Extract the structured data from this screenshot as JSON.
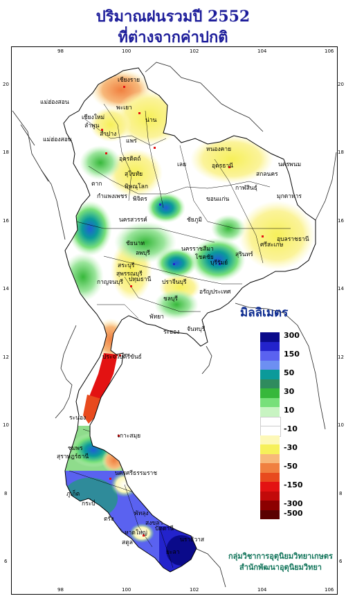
{
  "title": {
    "line1": "ปริมาณฝนรวมปี  2552",
    "line2": "ที่ต่างจากค่าปกติ"
  },
  "axes": {
    "longitude_ticks": [
      "98",
      "100",
      "102",
      "104",
      "106"
    ],
    "latitude_ticks": [
      "20",
      "18",
      "16",
      "14",
      "12",
      "10",
      "8",
      "6"
    ]
  },
  "legend": {
    "unit_title": "มิลลิเมตร",
    "entries": [
      {
        "color": "#0a0a8a",
        "label": "300"
      },
      {
        "color": "#2323cc",
        "label": ""
      },
      {
        "color": "#5a62f0",
        "label": "150"
      },
      {
        "color": "#6d8ff2",
        "label": ""
      },
      {
        "color": "#0b9a9a",
        "label": "50"
      },
      {
        "color": "#2f8b5e",
        "label": ""
      },
      {
        "color": "#37b83b",
        "label": "30"
      },
      {
        "color": "#78e07a",
        "label": ""
      },
      {
        "color": "#c8f4c2",
        "label": "10"
      },
      {
        "color": "#ffffff",
        "label": ""
      },
      {
        "color": "#ffffff",
        "label": "-10"
      },
      {
        "color": "#fdf8b8",
        "label": ""
      },
      {
        "color": "#f6f05a",
        "label": "-30"
      },
      {
        "color": "#f7b87a",
        "label": ""
      },
      {
        "color": "#f08040",
        "label": "-50"
      },
      {
        "color": "#e84a1e",
        "label": ""
      },
      {
        "color": "#e31212",
        "label": "-150"
      },
      {
        "color": "#c20a0a",
        "label": ""
      },
      {
        "color": "#8c0000",
        "label": "-300"
      },
      {
        "color": "#5a0000",
        "label": "-500"
      }
    ]
  },
  "places": [
    "เชียงราย",
    "แม่ฮ่องสอน",
    "เชียงใหม่",
    "ลำพูน",
    "พะเยา",
    "น่าน",
    "ลำปาง",
    "แพร่",
    "แม่ฮ่องสอน",
    "อุตรดิตถ์",
    "ตาก",
    "สุโขทัย",
    "พิษณุโลก",
    "กำแพงเพชร",
    "พิจิตร",
    "นครสวรรค์",
    "ชัยนาท",
    "หนองคาย",
    "อุดรธานี",
    "สกลนคร",
    "นครพนม",
    "มุกดาหาร",
    "เลย",
    "ขอนแก่น",
    "กาฬสินธุ์",
    "ชัยภูมิ",
    "นครราชสีมา",
    "โชคชัย",
    "บุรีรัมย์",
    "สุรินทร์",
    "ศรีสะเกษ",
    "อุบลราชธานี",
    "ลพบุรี",
    "สระบุรี",
    "สุพรรณบุรี",
    "กาญจนบุรี",
    "ปทุมธานี",
    "ปราจีนบุรี",
    "อรัญประเทศ",
    "ชลบุรี",
    "ระยอง",
    "จันทบุรี",
    "พัทยา",
    "ประจวบคีรีขันธ์",
    "ระนอง",
    "ชุมพร",
    "เกาะสมุย",
    "สุราษฎร์ธานี",
    "นครศรีธรรมราช",
    "ภูเก็ต",
    "กระบี่",
    "ตรัง",
    "พัทลุง",
    "สงขลา",
    "หาดใหญ่",
    "ปัตตานี",
    "นราธิวาส",
    "สตูล",
    "ยะลา"
  ],
  "credit": {
    "line1": "กลุ่มวิชาการอุตุนิยมวิทยาเกษตร",
    "line2": "สำนักพัฒนาอุตุนิยมวิทยา"
  }
}
